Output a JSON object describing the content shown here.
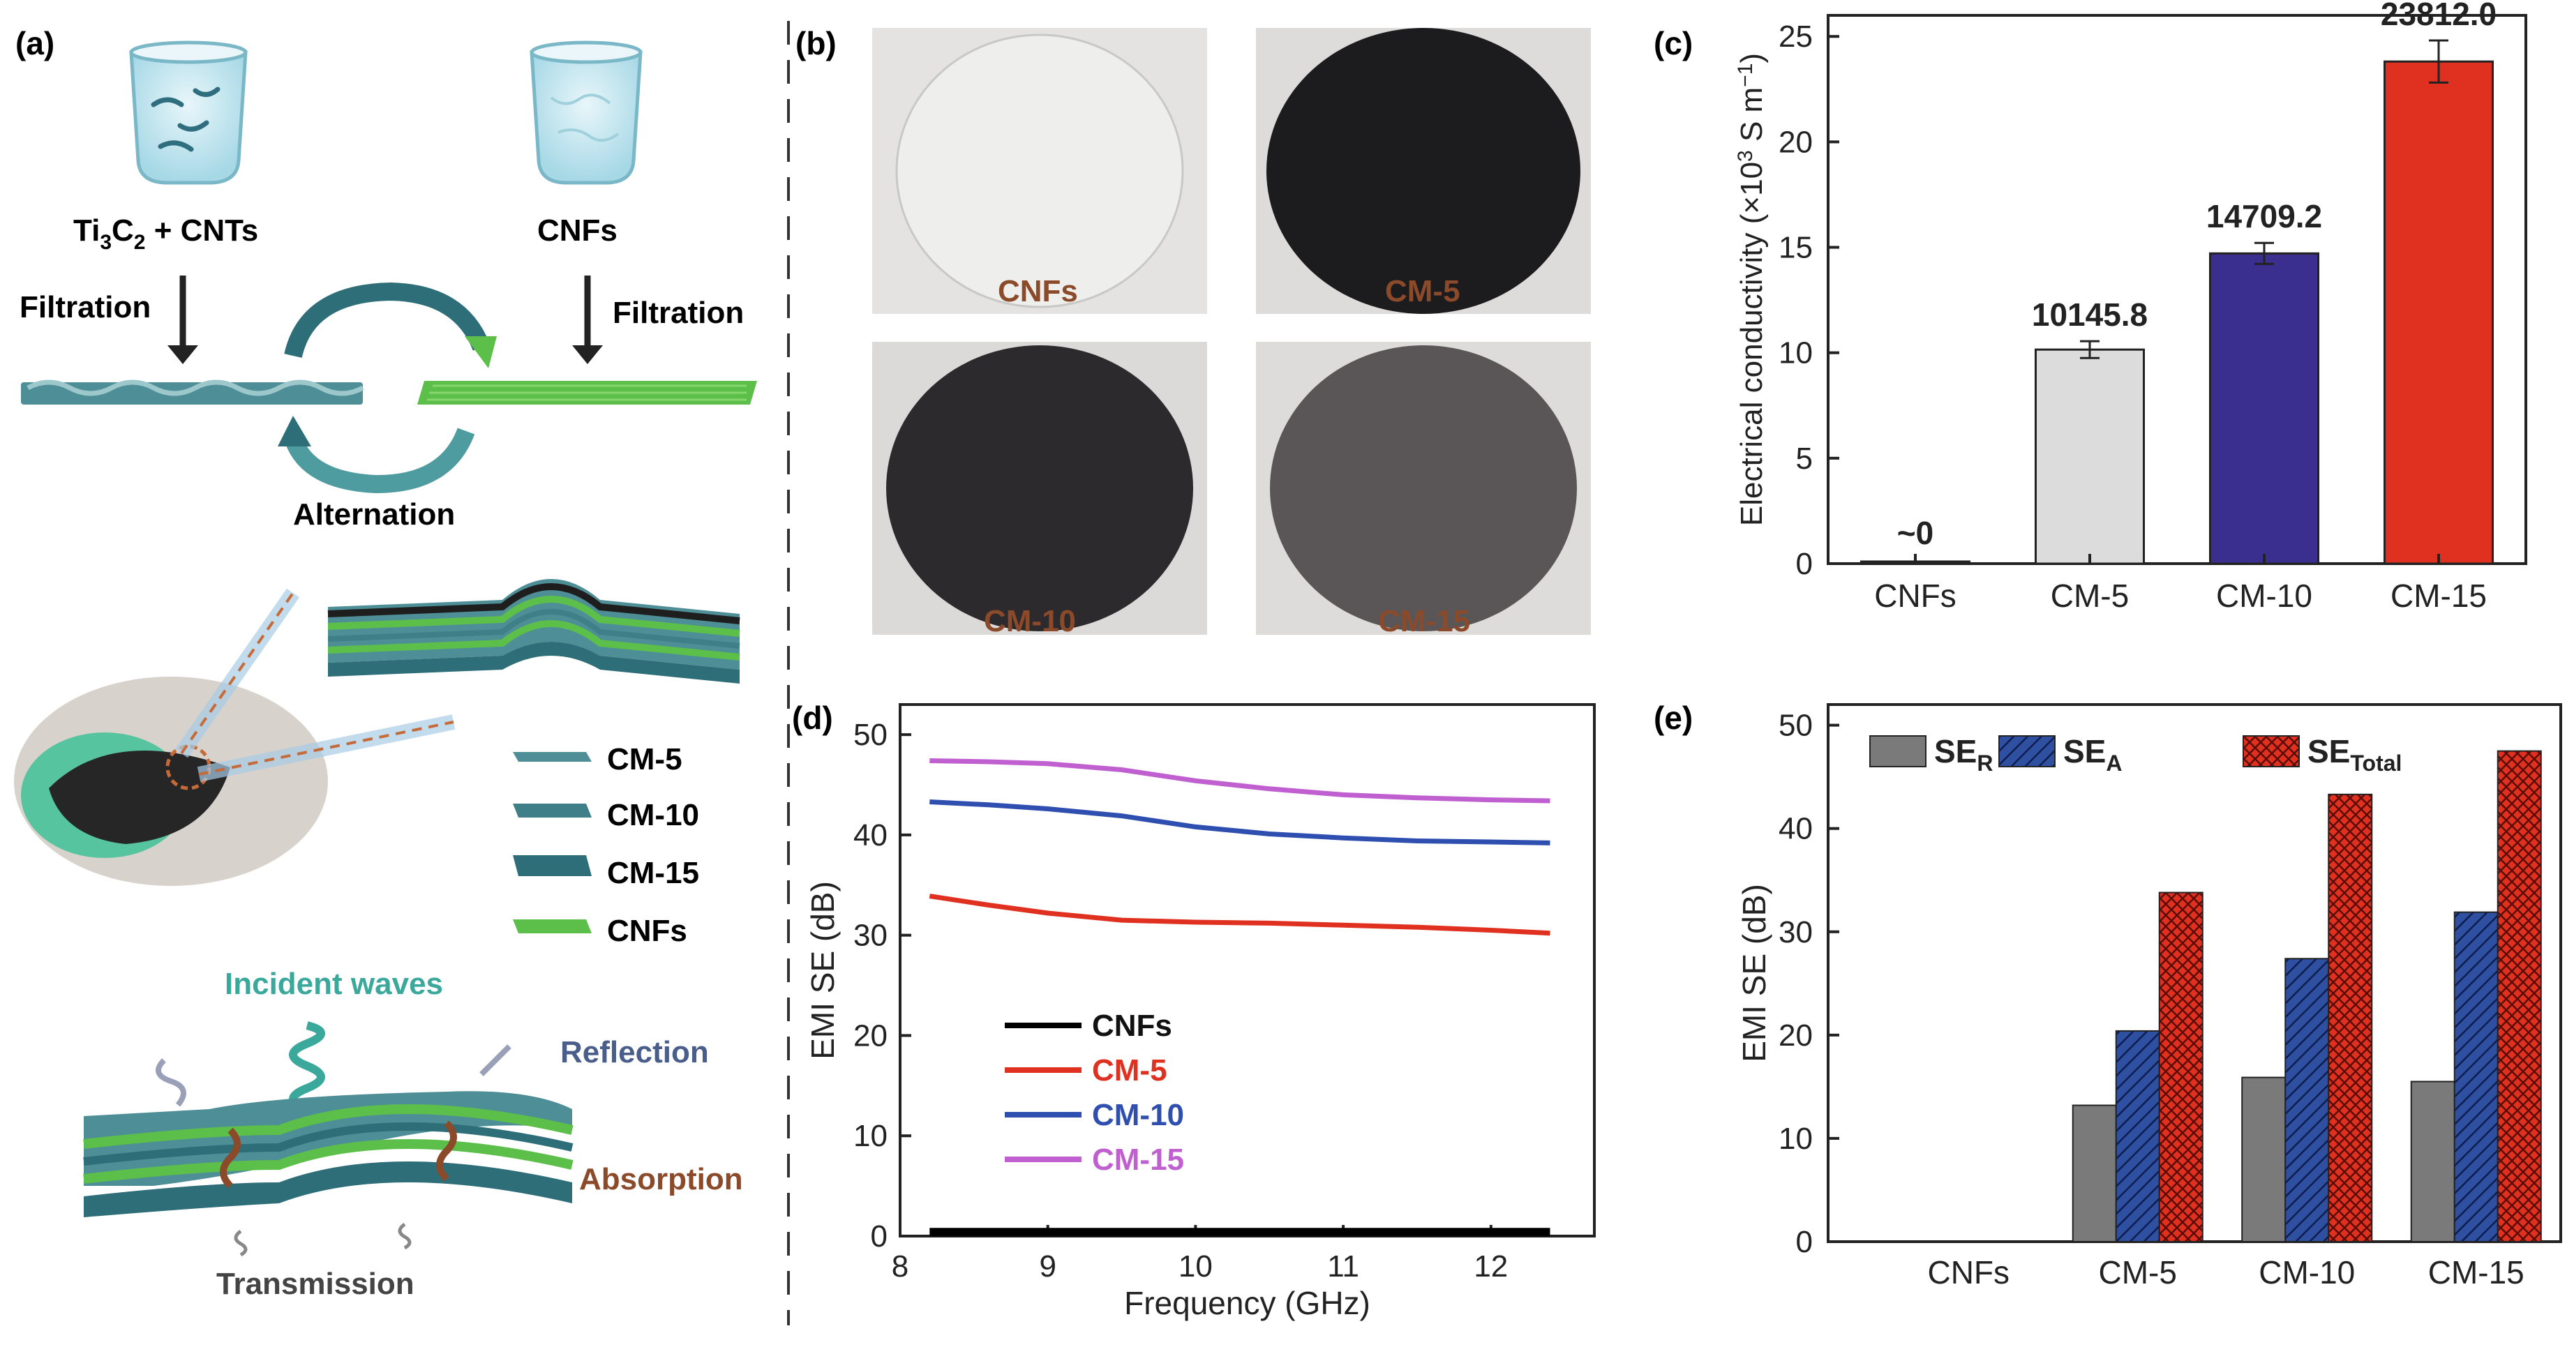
{
  "panels": {
    "a": {
      "label": "(a)",
      "beaker_left_label_main": "Ti",
      "beaker_left_sub1": "3",
      "beaker_left_mid": "C",
      "beaker_left_sub2": "2",
      "beaker_left_tail": " + CNTs",
      "beaker_right_label": "CNFs",
      "filtration_left": "Filtration",
      "filtration_right": "Filtration",
      "alternation": "Alternation",
      "legend": [
        "CM-5",
        "CM-10",
        "CM-15",
        "CNFs"
      ],
      "incident": "Incident waves",
      "reflection": "Reflection",
      "absorption": "Absorption",
      "transmission": "Transmission",
      "colors": {
        "teal": "#4a8c94",
        "green": "#5cbf4a",
        "black": "#111111",
        "brown": "#8b4a2a",
        "incident": "#3aa89a",
        "reflection": "#4a5e8c"
      }
    },
    "b": {
      "label": "(b)",
      "samples": [
        {
          "name": "CNFs",
          "fill": "#e8e8e6"
        },
        {
          "name": "CM-5",
          "fill": "#1c1b1d"
        },
        {
          "name": "CM-10",
          "fill": "#2c2a2c"
        },
        {
          "name": "CM-15",
          "fill": "#5a5658"
        }
      ],
      "label_color": "#8b4a2a"
    },
    "c": {
      "label": "(c)"
    },
    "d": {
      "label": "(d)"
    },
    "e": {
      "label": "(e)"
    }
  },
  "chart_data": [
    {
      "id": "c",
      "type": "bar",
      "categories": [
        "CNFs",
        "CM-5",
        "CM-10",
        "CM-15"
      ],
      "values": [
        0.1,
        10.15,
        14.71,
        23.81
      ],
      "errors": [
        0.05,
        0.4,
        0.5,
        1.0
      ],
      "data_labels": [
        "~0",
        "10145.8",
        "14709.2",
        "23812.0"
      ],
      "colors": [
        "#cccccc",
        "#dcdcdc",
        "#3a2f8e",
        "#e03020"
      ],
      "ylabel_main": "Electrical conductivity (×10",
      "ylabel_sup1": "3",
      "ylabel_mid": " S m",
      "ylabel_sup2": "−1",
      "ylabel_end": ")",
      "ylim": [
        0,
        26
      ],
      "yticks": [
        0,
        5,
        10,
        15,
        20,
        25
      ]
    },
    {
      "id": "d",
      "type": "line",
      "xlabel": "Frequency (GHz)",
      "ylabel": "EMI SE (dB)",
      "xlim": [
        8,
        12.7
      ],
      "ylim": [
        0,
        53
      ],
      "xticks": [
        8,
        9,
        10,
        11,
        12
      ],
      "yticks": [
        0,
        10,
        20,
        30,
        40,
        50
      ],
      "series": [
        {
          "name": "CNFs",
          "color": "#000000",
          "points": [
            [
              8.2,
              0.4
            ],
            [
              9,
              0.4
            ],
            [
              10,
              0.4
            ],
            [
              11,
              0.4
            ],
            [
              12.4,
              0.4
            ]
          ]
        },
        {
          "name": "CM-5",
          "color": "#e03020",
          "points": [
            [
              8.2,
              33.9
            ],
            [
              8.6,
              33.0
            ],
            [
              9.0,
              32.2
            ],
            [
              9.5,
              31.5
            ],
            [
              10,
              31.3
            ],
            [
              10.5,
              31.2
            ],
            [
              11,
              31.0
            ],
            [
              11.5,
              30.8
            ],
            [
              12,
              30.5
            ],
            [
              12.4,
              30.2
            ]
          ]
        },
        {
          "name": "CM-10",
          "color": "#2f4fb0",
          "points": [
            [
              8.2,
              43.3
            ],
            [
              8.6,
              43.0
            ],
            [
              9.0,
              42.6
            ],
            [
              9.5,
              41.9
            ],
            [
              10,
              40.8
            ],
            [
              10.5,
              40.1
            ],
            [
              11,
              39.7
            ],
            [
              11.5,
              39.4
            ],
            [
              12,
              39.3
            ],
            [
              12.4,
              39.2
            ]
          ]
        },
        {
          "name": "CM-15",
          "color": "#c060d0",
          "points": [
            [
              8.2,
              47.4
            ],
            [
              8.6,
              47.3
            ],
            [
              9.0,
              47.1
            ],
            [
              9.5,
              46.5
            ],
            [
              10,
              45.4
            ],
            [
              10.5,
              44.6
            ],
            [
              11,
              44.0
            ],
            [
              11.5,
              43.7
            ],
            [
              12,
              43.5
            ],
            [
              12.4,
              43.4
            ]
          ]
        }
      ]
    },
    {
      "id": "e",
      "type": "bar",
      "ylabel": "EMI SE (dB)",
      "ylim": [
        0,
        52
      ],
      "yticks": [
        0,
        10,
        20,
        30,
        40,
        50
      ],
      "categories": [
        "CNFs",
        "CM-5",
        "CM-10",
        "CM-15"
      ],
      "series": [
        {
          "name": "SE",
          "sub": "R",
          "color": "#7a7a7a",
          "pattern": "solid",
          "values": [
            0,
            13.2,
            15.9,
            15.5
          ]
        },
        {
          "name": "SE",
          "sub": "A",
          "color": "#2f4fa0",
          "pattern": "hatch",
          "values": [
            0,
            20.4,
            27.4,
            31.9
          ]
        },
        {
          "name": "SE",
          "sub": "Total",
          "color": "#e03020",
          "pattern": "cross",
          "values": [
            0,
            33.8,
            43.3,
            47.5
          ]
        }
      ]
    }
  ]
}
